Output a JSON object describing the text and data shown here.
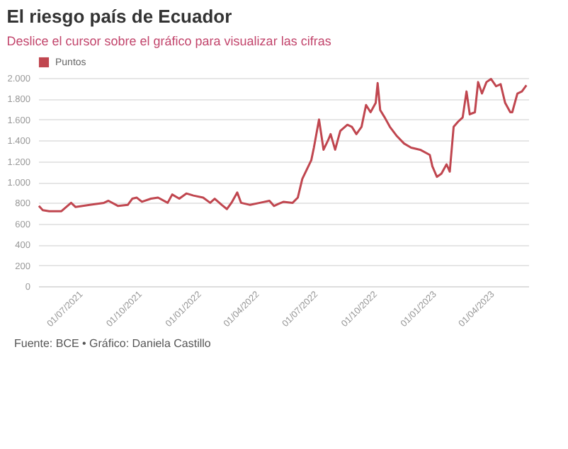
{
  "chart_data": {
    "type": "line",
    "title": "El riesgo país de Ecuador",
    "subtitle": "Deslice el cursor sobre el gráfico para visualizar las cifras",
    "annotations": [
      "Fuente: BCE • Gráfico: Daniela Castillo"
    ],
    "x": [
      "2021-05-02",
      "2021-05-08",
      "2021-05-18",
      "2021-06-06",
      "2021-06-21",
      "2021-06-28",
      "2021-07-20",
      "2021-08-11",
      "2021-08-18",
      "2021-09-02",
      "2021-09-17",
      "2021-09-24",
      "2021-10-01",
      "2021-10-09",
      "2021-10-23",
      "2021-11-03",
      "2021-11-18",
      "2021-11-25",
      "2021-12-06",
      "2021-12-17",
      "2021-12-28",
      "2022-01-12",
      "2022-01-23",
      "2022-01-30",
      "2022-02-10",
      "2022-02-18",
      "2022-02-25",
      "2022-03-06",
      "2022-03-12",
      "2022-03-26",
      "2022-04-10",
      "2022-04-25",
      "2022-05-02",
      "2022-05-09",
      "2022-05-17",
      "2022-05-31",
      "2022-06-08",
      "2022-06-15",
      "2022-06-22",
      "2022-06-29",
      "2022-07-03",
      "2022-07-11",
      "2022-07-18",
      "2022-07-25",
      "2022-07-29",
      "2022-08-05",
      "2022-08-13",
      "2022-08-24",
      "2022-08-31",
      "2022-09-07",
      "2022-09-15",
      "2022-09-22",
      "2022-09-29",
      "2022-10-07",
      "2022-10-10",
      "2022-10-14",
      "2022-10-21",
      "2022-10-29",
      "2022-11-09",
      "2022-11-20",
      "2022-12-01",
      "2022-12-15",
      "2022-12-30",
      "2023-01-03",
      "2023-01-10",
      "2023-01-17",
      "2023-01-25",
      "2023-01-30",
      "2023-02-05",
      "2023-02-12",
      "2023-02-19",
      "2023-02-25",
      "2023-03-02",
      "2023-03-10",
      "2023-03-15",
      "2023-03-21",
      "2023-03-28",
      "2023-04-04",
      "2023-04-12",
      "2023-04-19",
      "2023-04-26",
      "2023-05-04",
      "2023-05-07",
      "2023-05-15",
      "2023-05-22",
      "2023-05-29"
    ],
    "series": [
      {
        "name": "Puntos",
        "color": "#c0464f",
        "values": [
          770,
          730,
          720,
          720,
          800,
          760,
          780,
          800,
          820,
          770,
          780,
          840,
          850,
          810,
          840,
          850,
          800,
          880,
          840,
          890,
          870,
          850,
          800,
          840,
          780,
          740,
          800,
          900,
          800,
          780,
          800,
          820,
          770,
          790,
          810,
          800,
          850,
          1030,
          1120,
          1210,
          1330,
          1600,
          1310,
          1400,
          1460,
          1310,
          1490,
          1550,
          1530,
          1460,
          1530,
          1740,
          1670,
          1760,
          1950,
          1690,
          1620,
          1530,
          1440,
          1370,
          1330,
          1310,
          1260,
          1150,
          1050,
          1080,
          1170,
          1100,
          1530,
          1580,
          1620,
          1870,
          1650,
          1670,
          1960,
          1850,
          1960,
          1990,
          1920,
          1940,
          1760,
          1670,
          1670,
          1850,
          1870,
          1930
        ]
      }
    ],
    "xlim": [
      "2021-05-01",
      "2023-06-01"
    ],
    "xticks": [
      {
        "value": "2021-07-01",
        "label": "01/07/2021"
      },
      {
        "value": "2021-10-01",
        "label": "01/10/2021"
      },
      {
        "value": "2022-01-01",
        "label": "01/01/2022"
      },
      {
        "value": "2022-04-01",
        "label": "01/04/2022"
      },
      {
        "value": "2022-07-01",
        "label": "01/07/2022"
      },
      {
        "value": "2022-10-01",
        "label": "01/10/2022"
      },
      {
        "value": "2023-01-01",
        "label": "01/01/2023"
      },
      {
        "value": "2023-04-01",
        "label": "01/04/2023"
      }
    ],
    "ylim": [
      0,
      2000
    ],
    "yticks": [
      {
        "value": 0,
        "label": "0"
      },
      {
        "value": 200,
        "label": "200"
      },
      {
        "value": 400,
        "label": "400"
      },
      {
        "value": 600,
        "label": "600"
      },
      {
        "value": 800,
        "label": "800"
      },
      {
        "value": 1000,
        "label": "1.000"
      },
      {
        "value": 1200,
        "label": "1.200"
      },
      {
        "value": 1400,
        "label": "1.400"
      },
      {
        "value": 1600,
        "label": "1.600"
      },
      {
        "value": 1800,
        "label": "1.800"
      },
      {
        "value": 2000,
        "label": "2.000"
      }
    ],
    "grid": "y",
    "legend": "top left",
    "marker": "none",
    "line_style": "solid"
  }
}
